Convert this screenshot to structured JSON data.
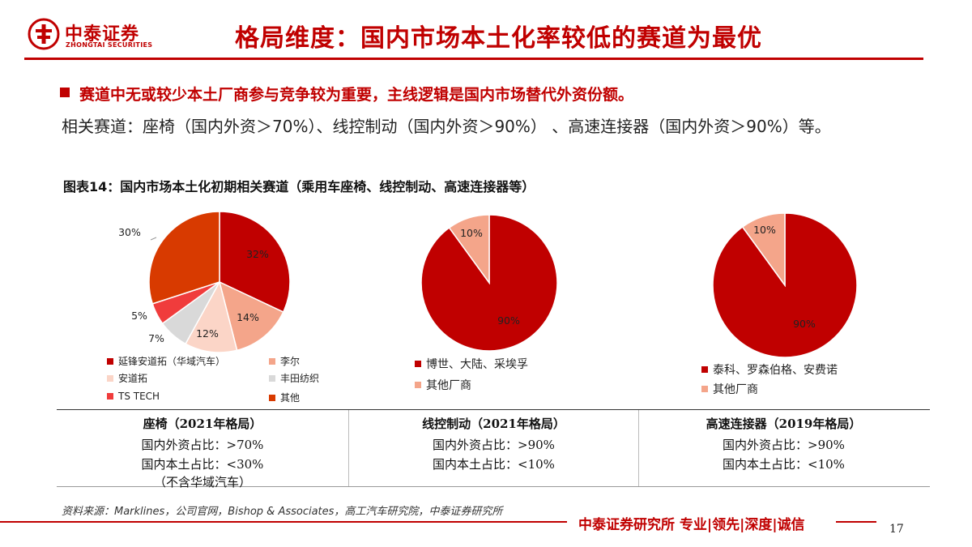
{
  "brand": {
    "name_cn": "中泰证券",
    "name_en": "ZHONGTAI SECURITIES",
    "color": "#c00000"
  },
  "title": "格局维度：国内市场本土化率较低的赛道为最优",
  "bullet": "赛道中无或较少本土厂商参与竞争较为重要，主线逻辑是国内市场替代外资份额。",
  "tracks": "相关赛道：座椅（国内外资＞70%）、线控制动（国内外资＞90%） 、高速连接器（国内外资＞90%）等。",
  "chart_caption": "图表14：国内市场本土化初期相关赛道（乘用车座椅、线控制动、高速连接器等）",
  "chart_data": [
    {
      "type": "pie",
      "title": "",
      "slices": [
        {
          "label": "延锋安道拓（华域汽车）",
          "value": 32,
          "text": "32%",
          "color": "#c00000"
        },
        {
          "label": "李尔",
          "value": 14,
          "text": "14%",
          "color": "#f4a58a"
        },
        {
          "label": "安道拓",
          "value": 12,
          "text": "12%",
          "color": "#fbd5c7"
        },
        {
          "label": "丰田纺织",
          "value": 7,
          "text": "7%",
          "color": "#d9d9d9"
        },
        {
          "label": "TS TECH",
          "value": 5,
          "text": "5%",
          "color": "#f03c3c"
        },
        {
          "label": "其他",
          "value": 30,
          "text": "30%",
          "color": "#d83a00"
        }
      ],
      "legend": "bottom"
    },
    {
      "type": "pie",
      "title": "",
      "slices": [
        {
          "label": "博世、大陆、采埃孚",
          "value": 90,
          "text": "90%",
          "color": "#c00000"
        },
        {
          "label": "其他厂商",
          "value": 10,
          "text": "10%",
          "color": "#f4a58a"
        }
      ],
      "legend": "bottom"
    },
    {
      "type": "pie",
      "title": "",
      "slices": [
        {
          "label": "泰科、罗森伯格、安费诺",
          "value": 90,
          "text": "90%",
          "color": "#c00000"
        },
        {
          "label": "其他厂商",
          "value": 10,
          "text": "10%",
          "color": "#f4a58a"
        }
      ],
      "legend": "bottom"
    }
  ],
  "table": {
    "columns": [
      {
        "header": "座椅（2021年格局）",
        "lines": [
          "国内外资占比：>70%",
          "国内本土占比：<30%",
          "（不含华域汽车）"
        ]
      },
      {
        "header": "线控制动（2021年格局）",
        "lines": [
          "国内外资占比：>90%",
          "国内本土占比：<10%"
        ]
      },
      {
        "header": "高速连接器（2019年格局）",
        "lines": [
          "国内外资占比：>90%",
          "国内本土占比：<10%"
        ]
      }
    ]
  },
  "source": "资料来源：Marklines，公司官网，Bishop & Associates，高工汽车研究院，中泰证券研究所",
  "footer": {
    "slogan": "中泰证券研究所 专业|领先|深度|诚信",
    "page": "17"
  }
}
